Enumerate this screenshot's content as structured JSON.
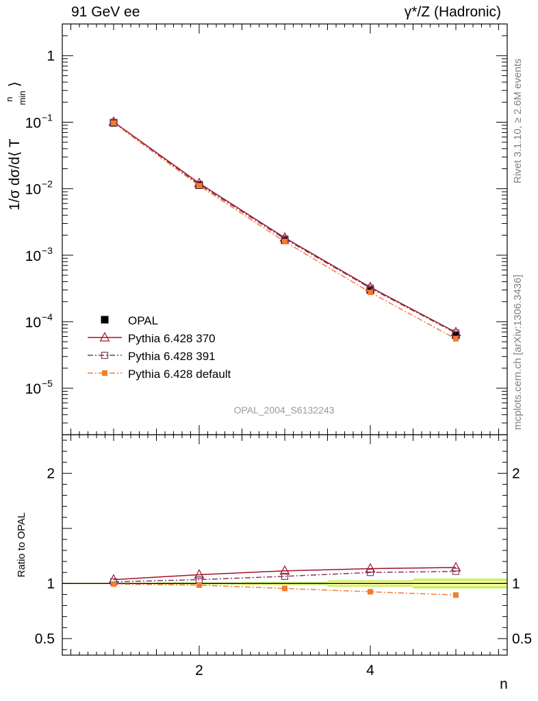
{
  "header": {
    "left_title": "91 GeV ee",
    "right_title": "γ*/Z (Hadronic)"
  },
  "side_labels": {
    "rivet": "Rivet 3.1.10, ≥ 2.6M events",
    "mcplots": "mcplots.cern.ch [arXiv:1306.3436]"
  },
  "chart_data": [
    {
      "type": "line",
      "panel": "main",
      "title": "",
      "watermark": "OPAL_2004_S6132243",
      "xlabel": "n",
      "ylabel": "1/σ dσ/d⟨ T",
      "ylabel_sup": "n",
      "ylabel_sub": "min",
      "ylabel_close": "⟩",
      "yscale": "log",
      "xlim": [
        0.4,
        5.6
      ],
      "ylim": [
        2e-06,
        3.0
      ],
      "x": [
        1,
        2,
        3,
        4,
        5
      ],
      "y_ticks": [
        {
          "value": 1,
          "label": "1"
        },
        {
          "value": 0.1,
          "base": "10",
          "exp": "−1"
        },
        {
          "value": 0.01,
          "base": "10",
          "exp": "−2"
        },
        {
          "value": 0.001,
          "base": "10",
          "exp": "−3"
        },
        {
          "value": 0.0001,
          "base": "10",
          "exp": "−4"
        },
        {
          "value": 1e-05,
          "base": "10",
          "exp": "−5"
        }
      ],
      "series": [
        {
          "name": "OPAL",
          "values": [
            0.098,
            0.0113,
            0.00168,
            0.0003,
            6.25e-05
          ],
          "color": "#000000",
          "marker": "filled-square",
          "line": "none"
        },
        {
          "name": "Pythia 6.428 370",
          "values": [
            0.101,
            0.0121,
            0.00183,
            0.00033,
            6.94e-05
          ],
          "color": "#a0102a",
          "marker": "open-triangle",
          "line": "solid"
        },
        {
          "name": "Pythia 6.428 391",
          "values": [
            0.0995,
            0.0116,
            0.00176,
            0.00032,
            6.75e-05
          ],
          "color": "#7a3a5a",
          "marker": "open-square",
          "line": "dashdot"
        },
        {
          "name": "Pythia 6.428 default",
          "values": [
            0.0975,
            0.0111,
            0.0016,
            0.000276,
            5.53e-05
          ],
          "color": "#f47a30",
          "marker": "small-filled-square",
          "line": "dashdot"
        }
      ],
      "legend_position": "lower-left"
    },
    {
      "type": "line",
      "panel": "ratio",
      "ylabel": "Ratio to OPAL",
      "xlabel": "n",
      "xlim": [
        0.4,
        5.6
      ],
      "ylim": [
        0.35,
        2.35
      ],
      "x": [
        1,
        2,
        3,
        4,
        5
      ],
      "x_ticks": [
        2,
        4
      ],
      "y_ticks": [
        0.5,
        1,
        2
      ],
      "reference_line": 1,
      "band_color": "#c8f070",
      "band_color_inner": "#ffff99",
      "band_halfwidth": [
        0.005,
        0.01,
        0.015,
        0.03,
        0.045
      ],
      "series": [
        {
          "name": "Pythia 6.428 370",
          "values": [
            1.035,
            1.08,
            1.115,
            1.135,
            1.145
          ],
          "color": "#a0102a",
          "marker": "open-triangle",
          "line": "solid"
        },
        {
          "name": "Pythia 6.428 391",
          "values": [
            1.015,
            1.035,
            1.065,
            1.1,
            1.11
          ],
          "color": "#7a3a5a",
          "marker": "open-square",
          "line": "dashdot"
        },
        {
          "name": "Pythia 6.428 default",
          "values": [
            0.995,
            0.985,
            0.955,
            0.925,
            0.895
          ],
          "color": "#f47a30",
          "marker": "small-filled-square",
          "line": "dashdot"
        }
      ]
    }
  ]
}
